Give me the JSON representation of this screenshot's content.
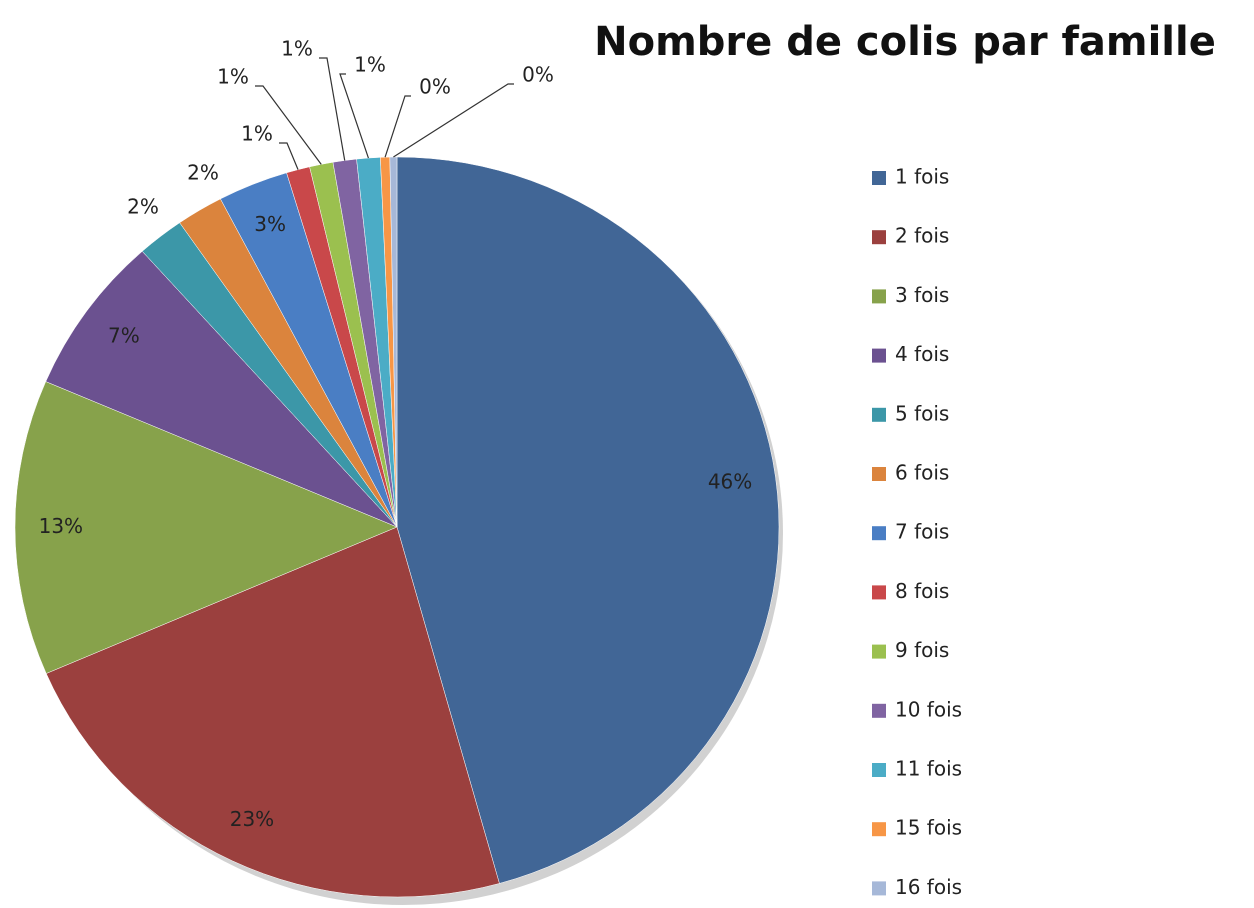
{
  "chart_data": {
    "type": "pie",
    "title": "Nombre de colis par famille",
    "categories": [
      "1 fois",
      "2 fois",
      "3 fois",
      "4 fois",
      "5 fois",
      "6 fois",
      "7 fois",
      "8 fois",
      "9 fois",
      "10 fois",
      "11 fois",
      "15 fois",
      "16 fois"
    ],
    "values": [
      46,
      23,
      13,
      7,
      2,
      2,
      3,
      1,
      1,
      1,
      1,
      0.4,
      0.3
    ],
    "value_labels": [
      "46%",
      "23%",
      "13%",
      "7%",
      "2%",
      "2%",
      "3%",
      "1%",
      "1%",
      "1%",
      "1%",
      "0%",
      "0%"
    ],
    "colors": [
      "#416696",
      "#9b403e",
      "#87a24b",
      "#6b5190",
      "#3c97a8",
      "#db843d",
      "#4a7ec4",
      "#c9484a",
      "#9bc04f",
      "#8064a2",
      "#4bacc6",
      "#f79646",
      "#a6b8d8"
    ],
    "legend": "right"
  }
}
